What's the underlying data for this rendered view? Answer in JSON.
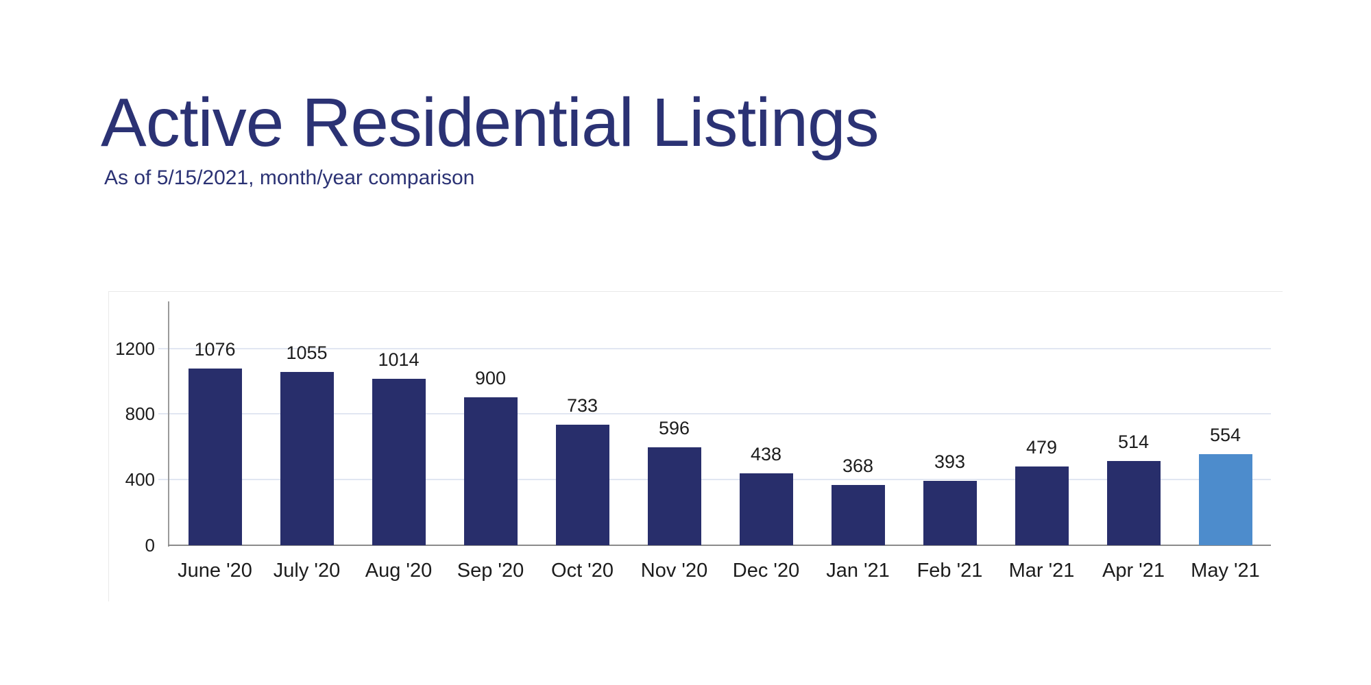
{
  "page": {
    "title": "Active Residential Listings",
    "subtitle": "As of 5/15/2021, month/year comparison"
  },
  "chart_data": {
    "type": "bar",
    "title": "Active Residential Listings",
    "subtitle": "As of 5/15/2021, month/year comparison",
    "categories": [
      "June '20",
      "July '20",
      "Aug '20",
      "Sep '20",
      "Oct '20",
      "Nov '20",
      "Dec '20",
      "Jan '21",
      "Feb '21",
      "Mar '21",
      "Apr '21",
      "May '21"
    ],
    "values": [
      1076,
      1055,
      1014,
      900,
      733,
      596,
      438,
      368,
      393,
      479,
      514,
      554
    ],
    "value_labels": [
      "1076",
      "1055",
      "1014",
      "900",
      "733",
      "596",
      "438",
      "368",
      "393",
      "479",
      "514",
      "554"
    ],
    "y_ticks": [
      0,
      400,
      800,
      1200
    ],
    "ylim": [
      0,
      1490
    ],
    "xlabel": "",
    "ylabel": "",
    "grid": true,
    "legend_position": "none",
    "bar_color": "#282e6b",
    "highlight_index": 11,
    "highlight_category": "May '21",
    "highlight_color": "#4d8ccc"
  },
  "colors": {
    "background": "#ffffff",
    "title_text": "#2b3274",
    "axis_text": "#1c1c1c",
    "gridline": "#e1e6f2",
    "axis_line": "#9a9a9a",
    "baseline": "#8b8b8b",
    "panel_border": "#e9e9e9"
  }
}
